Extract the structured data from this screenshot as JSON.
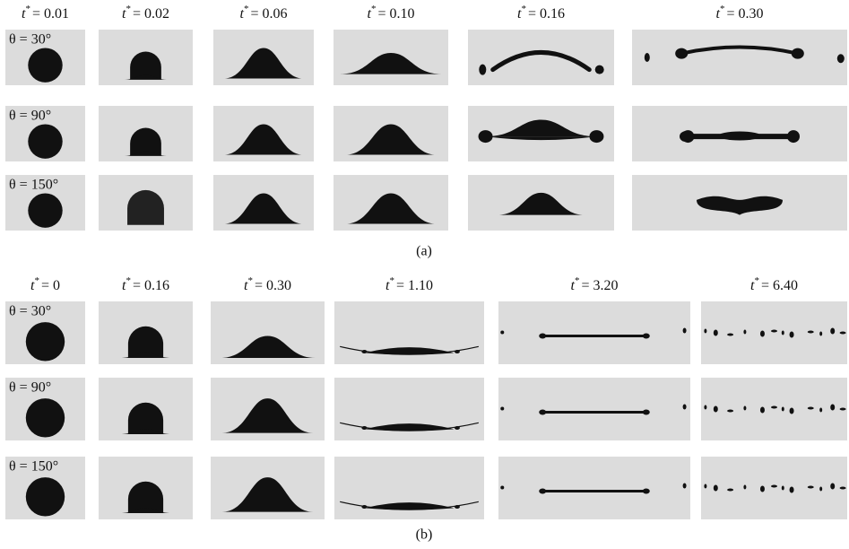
{
  "panels": [
    {
      "columns": [
        {
          "symbol": "t",
          "sup": "*",
          "rest": "= 0.01"
        },
        {
          "symbol": "t",
          "sup": "*",
          "rest": "= 0.02"
        },
        {
          "symbol": "t",
          "sup": "*",
          "rest": "= 0.06"
        },
        {
          "symbol": "t",
          "sup": "*",
          "rest": "= 0.10"
        },
        {
          "symbol": "t",
          "sup": "*",
          "rest": "= 0.16"
        },
        {
          "symbol": "t",
          "sup": "*",
          "rest": "= 0.30"
        }
      ],
      "rows": [
        "θ = 30°",
        "θ = 90°",
        "θ = 150°"
      ],
      "caption": "(a)"
    },
    {
      "columns": [
        {
          "symbol": "t",
          "sup": "*",
          "rest": "= 0"
        },
        {
          "symbol": "t",
          "sup": "*",
          "rest": "= 0.16"
        },
        {
          "symbol": "t",
          "sup": "*",
          "rest": "= 0.30"
        },
        {
          "symbol": "t",
          "sup": "*",
          "rest": "= 1.10"
        },
        {
          "symbol": "t",
          "sup": "*",
          "rest": "= 3.20"
        },
        {
          "symbol": "t",
          "sup": "*",
          "rest": "= 6.40"
        }
      ],
      "rows": [
        "θ = 30°",
        "θ = 90°",
        "θ = 150°"
      ],
      "caption": "(b)"
    }
  ]
}
